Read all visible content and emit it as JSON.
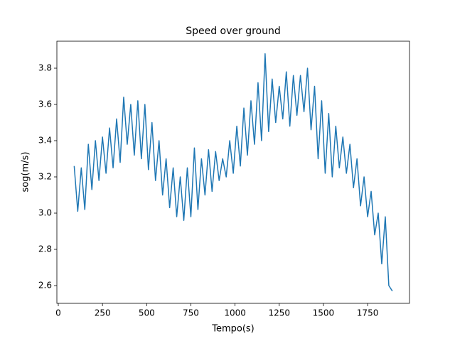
{
  "chart_data": {
    "type": "line",
    "title": "Speed over ground",
    "xlabel": "Tempo(s)",
    "ylabel": "sog(m/s)",
    "x": [
      90,
      110,
      130,
      150,
      170,
      190,
      210,
      230,
      250,
      270,
      290,
      310,
      330,
      350,
      370,
      390,
      410,
      430,
      450,
      470,
      490,
      510,
      530,
      550,
      570,
      590,
      610,
      630,
      650,
      670,
      690,
      710,
      730,
      750,
      770,
      790,
      810,
      830,
      850,
      870,
      890,
      910,
      930,
      950,
      970,
      990,
      1010,
      1030,
      1050,
      1070,
      1090,
      1110,
      1130,
      1150,
      1170,
      1190,
      1210,
      1230,
      1250,
      1270,
      1290,
      1310,
      1330,
      1350,
      1370,
      1390,
      1410,
      1430,
      1450,
      1470,
      1490,
      1510,
      1530,
      1550,
      1570,
      1590,
      1610,
      1630,
      1650,
      1670,
      1690,
      1710,
      1730,
      1750,
      1770,
      1790,
      1810,
      1830,
      1850,
      1870,
      1890
    ],
    "series": [
      {
        "color": "#1f77b4",
        "values": [
          3.26,
          3.01,
          3.25,
          3.02,
          3.38,
          3.13,
          3.4,
          3.18,
          3.42,
          3.22,
          3.47,
          3.25,
          3.52,
          3.28,
          3.64,
          3.38,
          3.6,
          3.32,
          3.62,
          3.3,
          3.6,
          3.24,
          3.5,
          3.18,
          3.4,
          3.1,
          3.3,
          3.03,
          3.25,
          2.98,
          3.2,
          2.96,
          3.25,
          2.98,
          3.36,
          3.02,
          3.3,
          3.1,
          3.35,
          3.12,
          3.34,
          3.18,
          3.3,
          3.2,
          3.4,
          3.22,
          3.48,
          3.26,
          3.58,
          3.32,
          3.62,
          3.38,
          3.72,
          3.4,
          3.88,
          3.45,
          3.74,
          3.5,
          3.7,
          3.52,
          3.78,
          3.48,
          3.76,
          3.54,
          3.76,
          3.56,
          3.8,
          3.46,
          3.7,
          3.3,
          3.62,
          3.22,
          3.55,
          3.2,
          3.48,
          3.25,
          3.42,
          3.22,
          3.38,
          3.14,
          3.3,
          3.04,
          3.2,
          2.98,
          3.12,
          2.88,
          3.0,
          2.72,
          2.98,
          2.6,
          2.57
        ]
      }
    ],
    "xlim": [
      -8,
      1987
    ],
    "xticks": [
      0,
      250,
      500,
      750,
      1000,
      1250,
      1500,
      1750
    ],
    "ylim": [
      2.502,
      3.949
    ],
    "yticks": [
      2.6,
      2.8,
      {
        "value": 3,
        "label": "3.0"
      },
      3.2,
      3.4,
      3.6,
      3.8
    ],
    "grid": false
  }
}
